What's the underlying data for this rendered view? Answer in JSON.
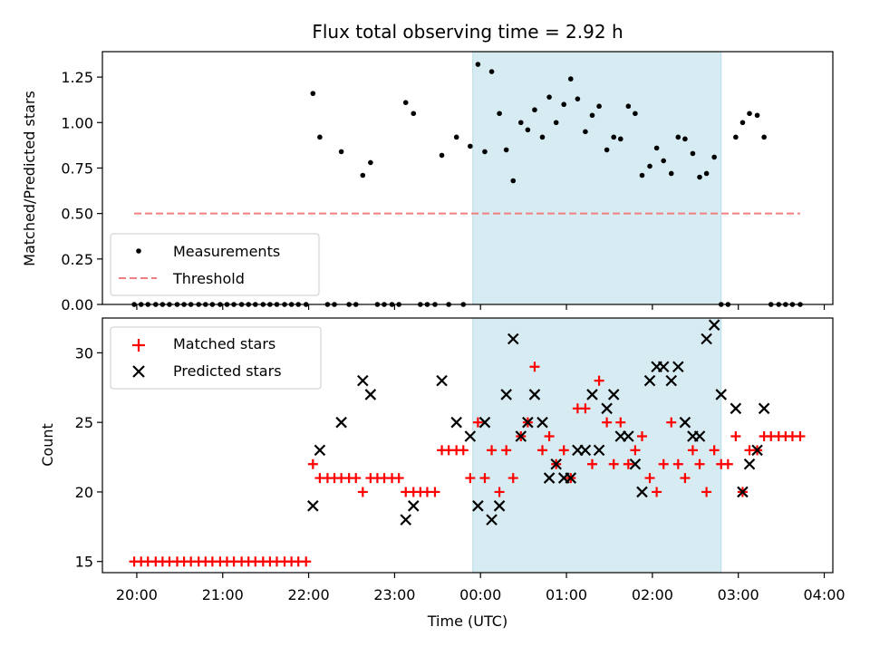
{
  "chart_data": [
    {
      "type": "scatter",
      "title": "Flux total observing time = 2.92 h",
      "xlabel": "",
      "ylabel": "Matched/Predicted stars",
      "ylim": [
        0,
        1.39
      ],
      "yticks": [
        "0.00",
        "0.25",
        "0.50",
        "0.75",
        "1.00",
        "1.25"
      ],
      "xlim_hours": [
        19.6,
        28.1
      ],
      "shaded_span_hours": [
        23.91,
        26.8
      ],
      "shaded_color": "#add8e6",
      "legend": {
        "placement": "lower-left",
        "entries": [
          "Measurements",
          "Threshold"
        ]
      },
      "threshold": {
        "name": "Threshold",
        "y": 0.5,
        "x_range_hours": [
          19.97,
          27.72
        ],
        "color": "#f08080",
        "style": "dashed"
      },
      "series": [
        {
          "name": "Measurements",
          "color": "#000000",
          "marker": "dot",
          "x_hours": [
            19.97,
            20.05,
            20.13,
            20.22,
            20.3,
            20.38,
            20.47,
            20.55,
            20.63,
            20.72,
            20.8,
            20.88,
            20.97,
            21.05,
            21.13,
            21.22,
            21.3,
            21.38,
            21.47,
            21.55,
            21.63,
            21.72,
            21.8,
            21.88,
            21.97,
            22.05,
            22.13,
            22.22,
            22.3,
            22.38,
            22.47,
            22.55,
            22.63,
            22.72,
            22.8,
            22.88,
            22.97,
            23.05,
            23.13,
            23.22,
            23.3,
            23.38,
            23.47,
            23.55,
            23.63,
            23.72,
            23.8,
            23.88,
            23.97,
            24.05,
            24.13,
            24.22,
            24.3,
            24.38,
            24.47,
            24.55,
            24.63,
            24.72,
            24.8,
            24.88,
            24.97,
            25.05,
            25.13,
            25.22,
            25.3,
            25.38,
            25.47,
            25.55,
            25.63,
            25.72,
            25.8,
            25.88,
            25.97,
            26.05,
            26.13,
            26.22,
            26.3,
            26.38,
            26.47,
            26.55,
            26.63,
            26.72,
            26.8,
            26.88,
            26.97,
            27.05,
            27.13,
            27.22,
            27.3,
            27.38,
            27.47,
            27.55,
            27.63,
            27.72
          ],
          "y": [
            0,
            0,
            0,
            0,
            0,
            0,
            0,
            0,
            0,
            0,
            0,
            0,
            0,
            0,
            0,
            0,
            0,
            0,
            0,
            0,
            0,
            0,
            0,
            0,
            0,
            1.16,
            0.92,
            0,
            0,
            0.84,
            0,
            0,
            0.71,
            0.78,
            0,
            0,
            0,
            0,
            1.11,
            1.05,
            0,
            0,
            0,
            0.82,
            0,
            0.92,
            0,
            0.87,
            1.32,
            0.84,
            1.28,
            1.05,
            0.85,
            0.68,
            1.0,
            0.96,
            1.07,
            0.92,
            1.14,
            1.0,
            1.1,
            1.24,
            1.13,
            0.95,
            1.04,
            1.09,
            0.85,
            0.92,
            0.91,
            1.09,
            1.05,
            0.71,
            0.76,
            0.86,
            0.79,
            0.72,
            0.92,
            0.91,
            0.83,
            0.7,
            0.72,
            0.81,
            0,
            0,
            0.92,
            1.0,
            1.05,
            1.04,
            0.92,
            0,
            0,
            0,
            0,
            0
          ]
        }
      ]
    },
    {
      "type": "scatter",
      "title": "",
      "xlabel": "Time (UTC)",
      "ylabel": "Count",
      "ylim": [
        14.2,
        32.5
      ],
      "yticks": [
        "15",
        "20",
        "25",
        "30"
      ],
      "xticks": [
        "20:00",
        "21:00",
        "22:00",
        "23:00",
        "00:00",
        "01:00",
        "02:00",
        "03:00",
        "04:00"
      ],
      "xtick_hours": [
        20,
        21,
        22,
        23,
        24,
        25,
        26,
        27,
        28
      ],
      "xlim_hours": [
        19.6,
        28.1
      ],
      "shaded_span_hours": [
        23.91,
        26.8
      ],
      "shaded_color": "#add8e6",
      "legend": {
        "placement": "upper-left",
        "entries": [
          "Matched stars",
          "Predicted stars"
        ]
      },
      "series": [
        {
          "name": "Matched stars",
          "color": "#ff0000",
          "marker": "plus",
          "x_hours": [
            19.97,
            20.05,
            20.13,
            20.22,
            20.3,
            20.38,
            20.47,
            20.55,
            20.63,
            20.72,
            20.8,
            20.88,
            20.97,
            21.05,
            21.13,
            21.22,
            21.3,
            21.38,
            21.47,
            21.55,
            21.63,
            21.72,
            21.8,
            21.88,
            21.97,
            22.05,
            22.13,
            22.22,
            22.3,
            22.38,
            22.47,
            22.55,
            22.63,
            22.72,
            22.8,
            22.88,
            22.97,
            23.05,
            23.13,
            23.22,
            23.3,
            23.38,
            23.47,
            23.55,
            23.63,
            23.72,
            23.8,
            23.88,
            23.97,
            24.05,
            24.13,
            24.22,
            24.3,
            24.38,
            24.47,
            24.55,
            24.63,
            24.72,
            24.8,
            24.88,
            24.97,
            25.05,
            25.13,
            25.22,
            25.3,
            25.38,
            25.47,
            25.55,
            25.63,
            25.72,
            25.8,
            25.88,
            25.97,
            26.05,
            26.13,
            26.22,
            26.3,
            26.38,
            26.47,
            26.55,
            26.63,
            26.72,
            26.8,
            26.88,
            26.97,
            27.05,
            27.13,
            27.22,
            27.3,
            27.38,
            27.47,
            27.55,
            27.63,
            27.72
          ],
          "y": [
            15,
            15,
            15,
            15,
            15,
            15,
            15,
            15,
            15,
            15,
            15,
            15,
            15,
            15,
            15,
            15,
            15,
            15,
            15,
            15,
            15,
            15,
            15,
            15,
            15,
            22,
            21,
            21,
            21,
            21,
            21,
            21,
            20,
            21,
            21,
            21,
            21,
            21,
            20,
            20,
            20,
            20,
            20,
            23,
            23,
            23,
            23,
            21,
            25,
            21,
            23,
            20,
            23,
            21,
            24,
            25,
            29,
            23,
            24,
            22,
            23,
            21,
            26,
            26,
            22,
            28,
            25,
            22,
            25,
            22,
            23,
            24,
            21,
            20,
            22,
            25,
            22,
            21,
            23,
            22,
            20,
            23,
            22,
            22,
            24,
            20,
            23,
            23,
            24,
            24,
            24,
            24,
            24,
            24
          ]
        },
        {
          "name": "Predicted stars",
          "color": "#000000",
          "marker": "x",
          "x_hours": [
            22.05,
            22.13,
            22.38,
            22.63,
            22.72,
            23.13,
            23.22,
            23.55,
            23.72,
            23.88,
            23.97,
            24.05,
            24.13,
            24.22,
            24.3,
            24.38,
            24.47,
            24.55,
            24.63,
            24.72,
            24.8,
            24.88,
            24.97,
            25.05,
            25.13,
            25.22,
            25.3,
            25.38,
            25.47,
            25.55,
            25.63,
            25.72,
            25.8,
            25.88,
            25.97,
            26.05,
            26.13,
            26.22,
            26.3,
            26.38,
            26.47,
            26.55,
            26.63,
            26.72,
            26.8,
            26.97,
            27.05,
            27.13,
            27.22,
            27.3
          ],
          "y": [
            19,
            23,
            25,
            28,
            27,
            18,
            19,
            28,
            25,
            24,
            19,
            25,
            18,
            19,
            27,
            31,
            24,
            25,
            27,
            25,
            21,
            22,
            21,
            21,
            23,
            23,
            27,
            23,
            26,
            27,
            24,
            24,
            22,
            20,
            28,
            29,
            29,
            28,
            29,
            25,
            24,
            24,
            31,
            32,
            27,
            26,
            20,
            22,
            23,
            26
          ]
        }
      ]
    }
  ]
}
